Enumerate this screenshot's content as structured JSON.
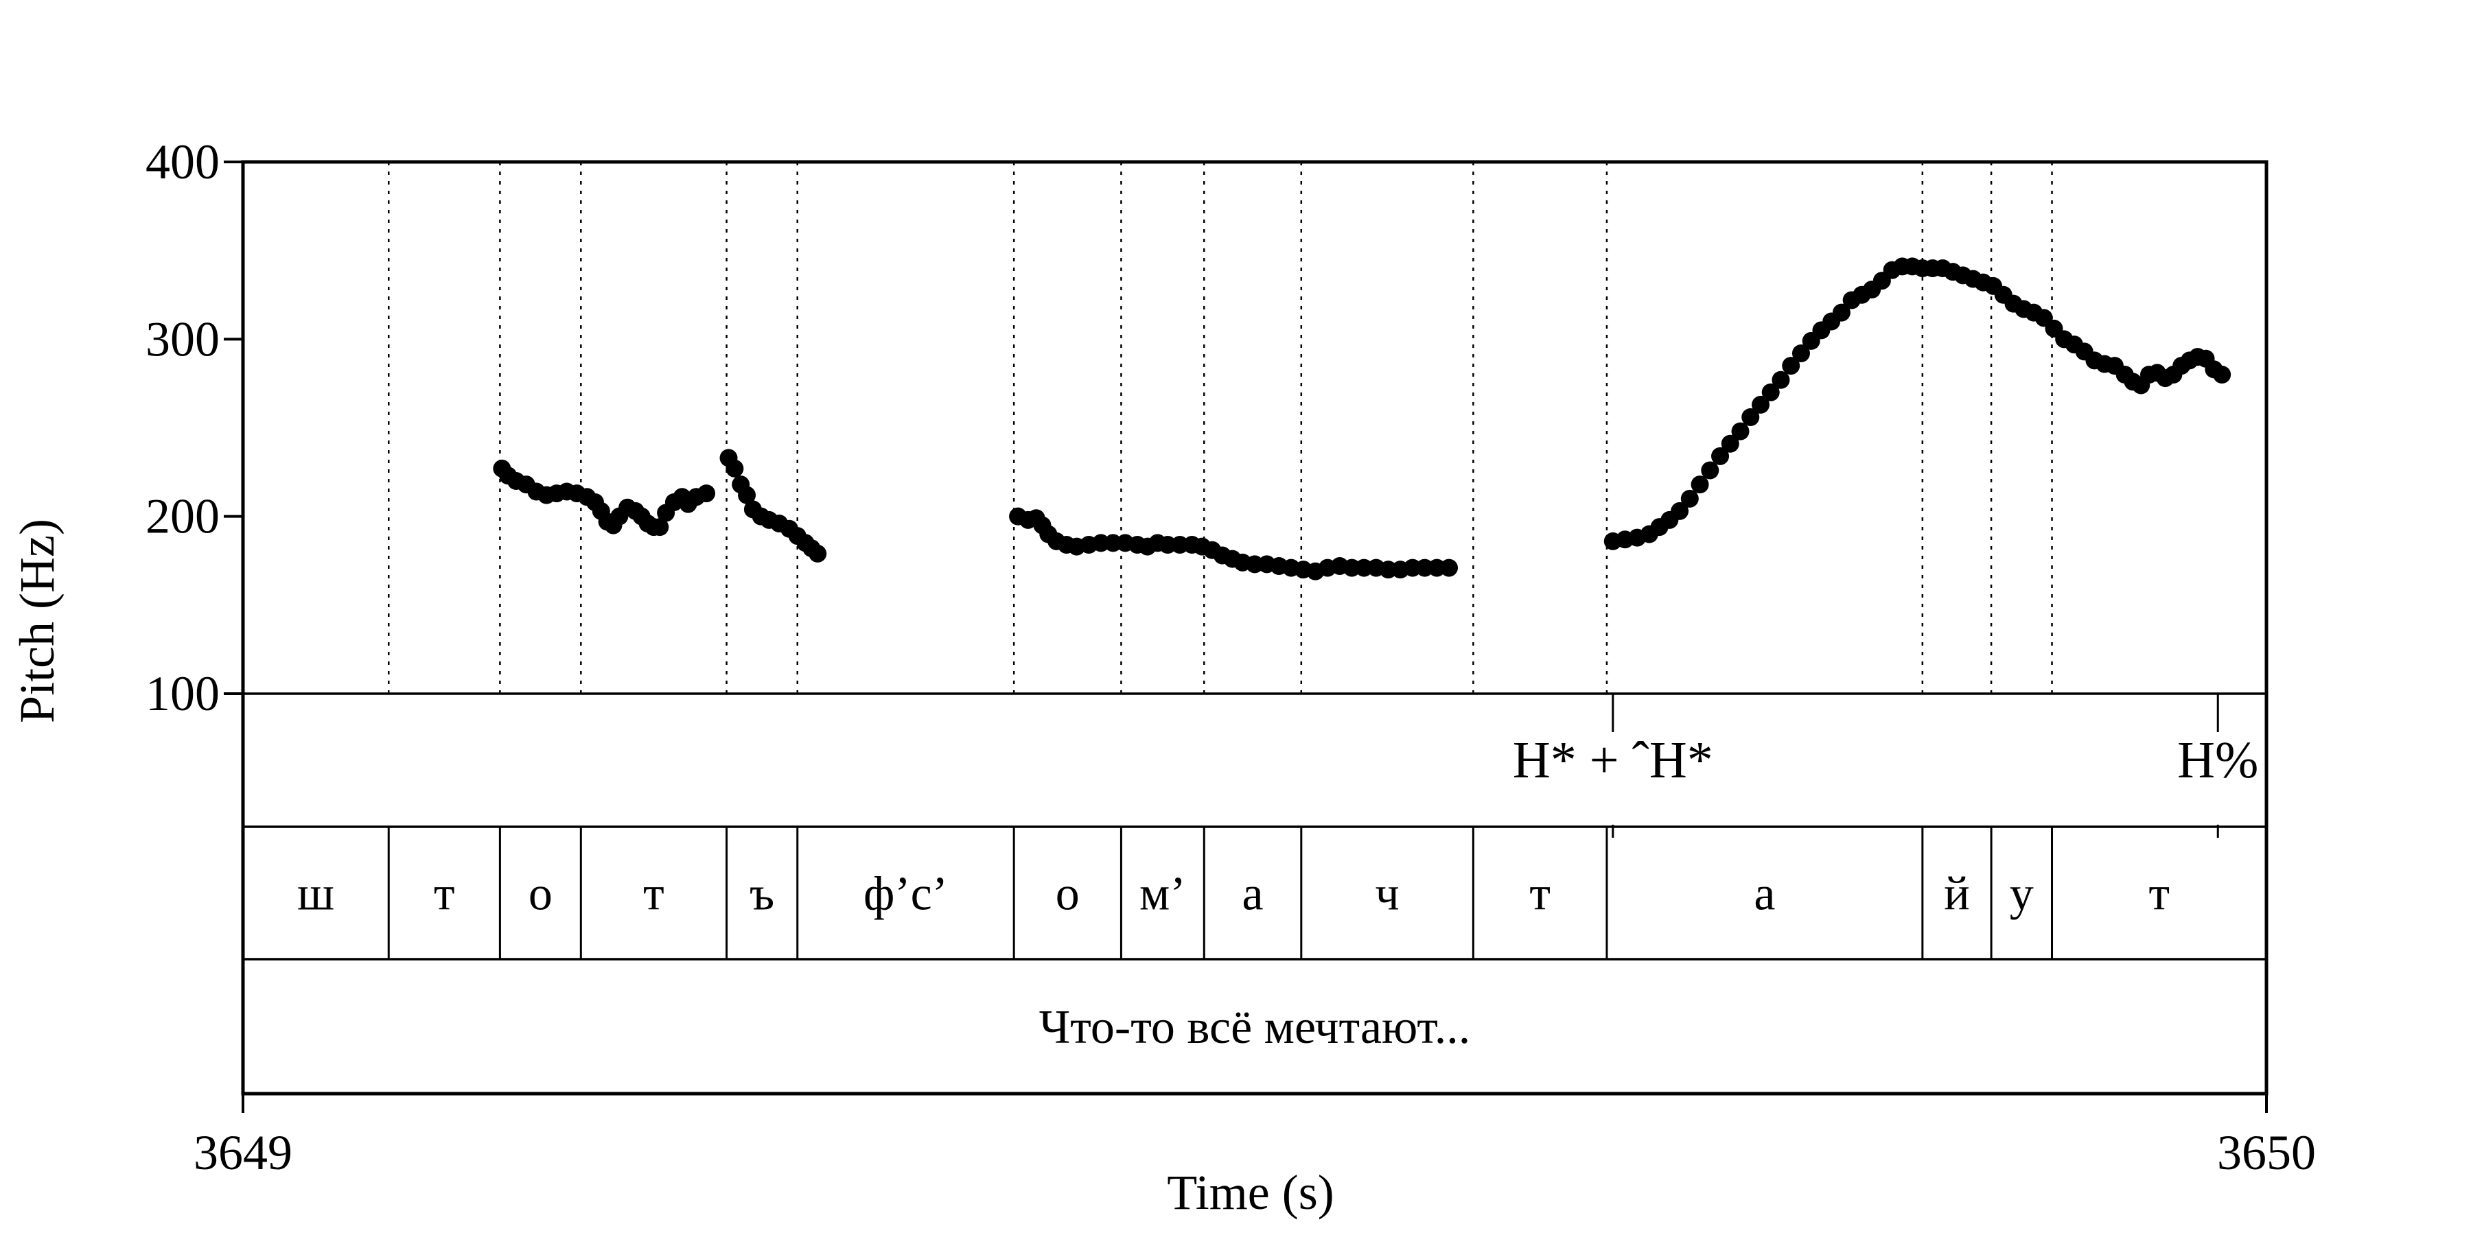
{
  "chart_data": {
    "type": "scatter",
    "xlabel": "Time (s)",
    "ylabel": "Pitch (Hz)",
    "xlim": [
      3649,
      3650
    ],
    "ylim": [
      100,
      400
    ],
    "x_ticks": [
      "3649",
      "3650"
    ],
    "y_ticks": [
      "100",
      "200",
      "300",
      "400"
    ],
    "y_tick_values": [
      100,
      200,
      300,
      400
    ],
    "grid": "dotted vertical lines at segment boundaries",
    "legend": "none",
    "point_color": "#000000",
    "series": [
      {
        "values": [
          [
            3649.128,
            227
          ],
          [
            3649.131,
            223
          ],
          [
            3649.135,
            220
          ],
          [
            3649.14,
            218
          ],
          [
            3649.145,
            214
          ],
          [
            3649.15,
            212
          ],
          [
            3649.155,
            213
          ],
          [
            3649.16,
            214
          ],
          [
            3649.165,
            213
          ],
          [
            3649.17,
            211
          ],
          [
            3649.174,
            208
          ],
          [
            3649.177,
            203
          ],
          [
            3649.18,
            197
          ],
          [
            3649.183,
            195
          ],
          [
            3649.186,
            200
          ],
          [
            3649.19,
            205
          ],
          [
            3649.194,
            203
          ],
          [
            3649.197,
            200
          ],
          [
            3649.2,
            196
          ],
          [
            3649.203,
            194
          ],
          [
            3649.206,
            194
          ],
          [
            3649.209,
            202
          ],
          [
            3649.213,
            208
          ],
          [
            3649.217,
            211
          ],
          [
            3649.22,
            207
          ],
          [
            3649.224,
            211
          ],
          [
            3649.229,
            213
          ]
        ]
      },
      {
        "values": [
          [
            3649.24,
            233
          ],
          [
            3649.243,
            227
          ],
          [
            3649.246,
            218
          ],
          [
            3649.249,
            212
          ],
          [
            3649.252,
            204
          ],
          [
            3649.256,
            200
          ],
          [
            3649.26,
            198
          ],
          [
            3649.265,
            196
          ],
          [
            3649.27,
            193
          ],
          [
            3649.274,
            189
          ],
          [
            3649.278,
            185
          ],
          [
            3649.281,
            182
          ],
          [
            3649.284,
            179
          ]
        ]
      },
      {
        "values": [
          [
            3649.383,
            200
          ],
          [
            3649.388,
            198
          ],
          [
            3649.392,
            199
          ],
          [
            3649.395,
            195
          ],
          [
            3649.398,
            190
          ],
          [
            3649.402,
            186
          ],
          [
            3649.407,
            184
          ],
          [
            3649.412,
            183
          ],
          [
            3649.418,
            184
          ],
          [
            3649.424,
            185
          ],
          [
            3649.43,
            185
          ],
          [
            3649.436,
            185
          ],
          [
            3649.442,
            184
          ],
          [
            3649.447,
            183
          ],
          [
            3649.452,
            185
          ],
          [
            3649.457,
            184
          ],
          [
            3649.463,
            184
          ],
          [
            3649.469,
            184
          ],
          [
            3649.474,
            183
          ],
          [
            3649.479,
            181
          ],
          [
            3649.484,
            178
          ],
          [
            3649.489,
            176
          ],
          [
            3649.494,
            174
          ],
          [
            3649.5,
            173
          ],
          [
            3649.506,
            173
          ],
          [
            3649.512,
            172
          ],
          [
            3649.518,
            171
          ],
          [
            3649.524,
            170
          ],
          [
            3649.53,
            169
          ],
          [
            3649.536,
            171
          ],
          [
            3649.542,
            172
          ],
          [
            3649.548,
            171
          ],
          [
            3649.554,
            171
          ],
          [
            3649.56,
            171
          ],
          [
            3649.566,
            170
          ],
          [
            3649.572,
            170
          ],
          [
            3649.578,
            171
          ],
          [
            3649.584,
            171
          ],
          [
            3649.59,
            171
          ],
          [
            3649.596,
            171
          ]
        ]
      },
      {
        "values": [
          [
            3649.677,
            186
          ],
          [
            3649.683,
            187
          ],
          [
            3649.689,
            188
          ],
          [
            3649.695,
            190
          ],
          [
            3649.7,
            194
          ],
          [
            3649.705,
            198
          ],
          [
            3649.71,
            203
          ],
          [
            3649.715,
            210
          ],
          [
            3649.72,
            218
          ],
          [
            3649.725,
            226
          ],
          [
            3649.73,
            234
          ],
          [
            3649.735,
            241
          ],
          [
            3649.74,
            248
          ],
          [
            3649.745,
            256
          ],
          [
            3649.75,
            263
          ],
          [
            3649.755,
            270
          ],
          [
            3649.76,
            277
          ],
          [
            3649.765,
            285
          ],
          [
            3649.77,
            292
          ],
          [
            3649.775,
            299
          ],
          [
            3649.78,
            305
          ],
          [
            3649.785,
            310
          ],
          [
            3649.79,
            315
          ],
          [
            3649.795,
            322
          ],
          [
            3649.8,
            325
          ],
          [
            3649.805,
            328
          ],
          [
            3649.81,
            333
          ],
          [
            3649.815,
            339
          ],
          [
            3649.82,
            341
          ],
          [
            3649.825,
            341
          ],
          [
            3649.83,
            340
          ],
          [
            3649.835,
            340
          ],
          [
            3649.84,
            340
          ],
          [
            3649.845,
            338
          ],
          [
            3649.85,
            336
          ],
          [
            3649.855,
            334
          ],
          [
            3649.86,
            332
          ],
          [
            3649.865,
            330
          ],
          [
            3649.87,
            325
          ],
          [
            3649.875,
            320
          ],
          [
            3649.88,
            317
          ],
          [
            3649.885,
            315
          ],
          [
            3649.89,
            312
          ],
          [
            3649.895,
            306
          ],
          [
            3649.9,
            300
          ],
          [
            3649.905,
            297
          ],
          [
            3649.91,
            293
          ],
          [
            3649.915,
            288
          ],
          [
            3649.92,
            286
          ],
          [
            3649.925,
            285
          ],
          [
            3649.93,
            280
          ],
          [
            3649.934,
            276
          ],
          [
            3649.938,
            274
          ],
          [
            3649.942,
            280
          ],
          [
            3649.946,
            281
          ],
          [
            3649.95,
            278
          ],
          [
            3649.954,
            280
          ],
          [
            3649.958,
            285
          ],
          [
            3649.962,
            288
          ],
          [
            3649.966,
            290
          ],
          [
            3649.97,
            289
          ],
          [
            3649.974,
            283
          ],
          [
            3649.978,
            280
          ]
        ]
      }
    ],
    "tone_tier": [
      {
        "time": 3649.677,
        "label": "H* + ˆH*"
      },
      {
        "time": 3649.976,
        "label": "H%"
      }
    ],
    "segment_tier": [
      {
        "start": 3649.0,
        "end": 3649.072,
        "label": "ш"
      },
      {
        "start": 3649.072,
        "end": 3649.127,
        "label": "т"
      },
      {
        "start": 3649.127,
        "end": 3649.167,
        "label": "о"
      },
      {
        "start": 3649.167,
        "end": 3649.239,
        "label": "т"
      },
      {
        "start": 3649.239,
        "end": 3649.274,
        "label": "ъ"
      },
      {
        "start": 3649.274,
        "end": 3649.381,
        "label": "ф’с’"
      },
      {
        "start": 3649.381,
        "end": 3649.434,
        "label": "о"
      },
      {
        "start": 3649.434,
        "end": 3649.475,
        "label": "м’"
      },
      {
        "start": 3649.475,
        "end": 3649.523,
        "label": "а"
      },
      {
        "start": 3649.523,
        "end": 3649.608,
        "label": "ч"
      },
      {
        "start": 3649.608,
        "end": 3649.674,
        "label": "т"
      },
      {
        "start": 3649.674,
        "end": 3649.83,
        "label": "а"
      },
      {
        "start": 3649.83,
        "end": 3649.864,
        "label": "й"
      },
      {
        "start": 3649.864,
        "end": 3649.894,
        "label": "у"
      },
      {
        "start": 3649.894,
        "end": 3650.0,
        "label": "т"
      }
    ],
    "utterance_tier": [
      {
        "start": 3649.0,
        "end": 3650.0,
        "label": "Что-то всё мечтают..."
      }
    ]
  }
}
